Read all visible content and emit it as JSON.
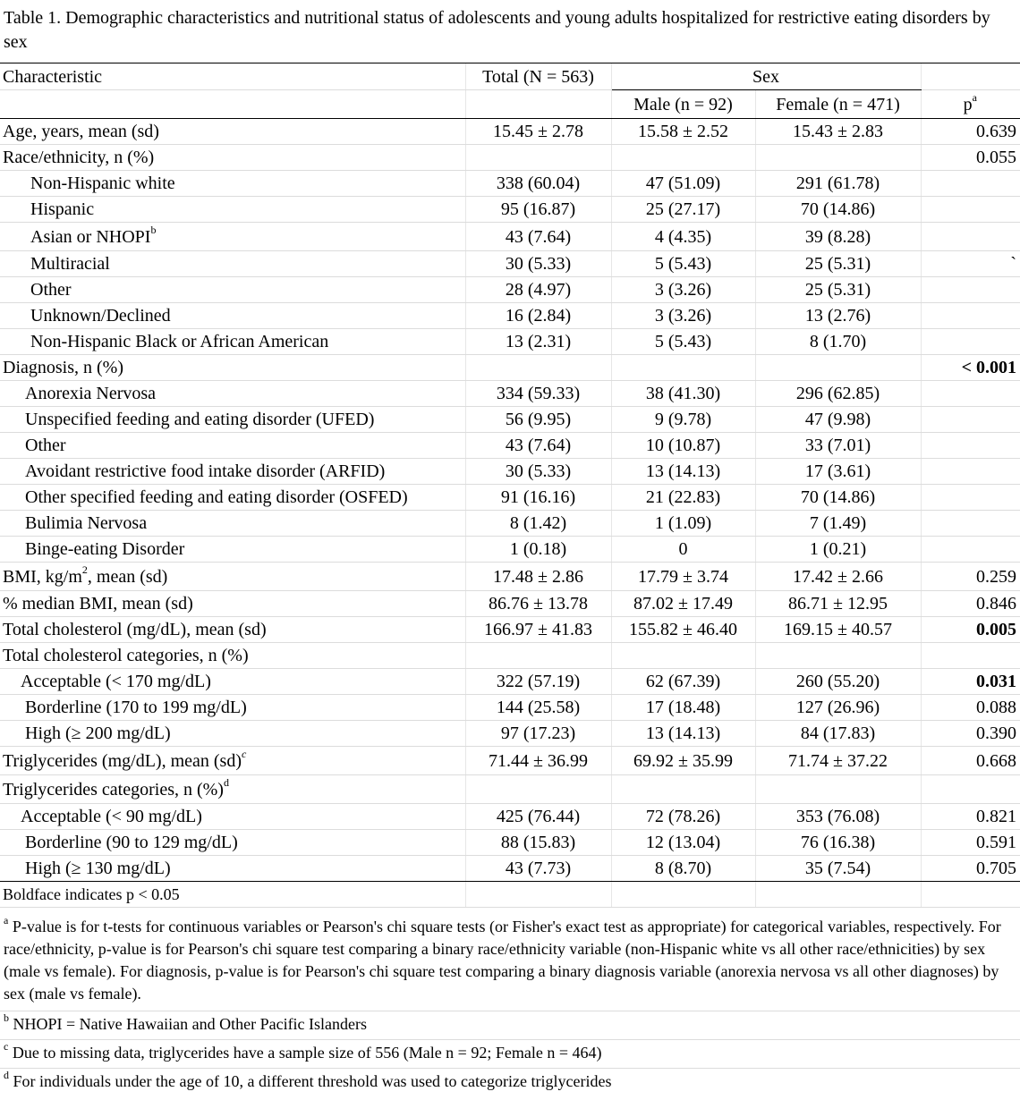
{
  "caption": "Table 1. Demographic characteristics and nutritional status of adolescents and young adults hospitalized for restrictive eating disorders by sex",
  "header": {
    "characteristic": "Characteristic",
    "total": "Total (N = 563)",
    "sex": "Sex",
    "male": "Male (n = 92)",
    "female": "Female (n = 471)",
    "p": "p",
    "p_sup": "a"
  },
  "rows": [
    {
      "label": "Age, years, mean (sd)",
      "total": "15.45 ± 2.78",
      "male": "15.58 ± 2.52",
      "female": "15.43 ± 2.83",
      "p": "0.639"
    },
    {
      "label": "Race/ethnicity, n (%)",
      "total": "",
      "male": "",
      "female": "",
      "p": "0.055"
    },
    {
      "label": "Non-Hispanic white",
      "total": "338 (60.04)",
      "male": "47 (51.09)",
      "female": "291 (61.78)",
      "p": ""
    },
    {
      "label": "Hispanic",
      "total": "95 (16.87)",
      "male": "25 (27.17)",
      "female": "70 (14.86)",
      "p": ""
    },
    {
      "label": "Asian or NHOPI",
      "label_sup": "b",
      "total": "43 (7.64)",
      "male": "4 (4.35)",
      "female": "39 (8.28)",
      "p": ""
    },
    {
      "label": "Multiracial",
      "total": "30 (5.33)",
      "male": "5 (5.43)",
      "female": "25 (5.31)",
      "p": "`"
    },
    {
      "label": "Other",
      "total": "28 (4.97)",
      "male": "3 (3.26)",
      "female": "25 (5.31)",
      "p": ""
    },
    {
      "label": "Unknown/Declined",
      "total": "16 (2.84)",
      "male": "3 (3.26)",
      "female": "13 (2.76)",
      "p": ""
    },
    {
      "label": "Non-Hispanic Black or African American",
      "total": "13 (2.31)",
      "male": "5 (5.43)",
      "female": "8 (1.70)",
      "p": ""
    },
    {
      "label": "Diagnosis, n (%)",
      "total": "",
      "male": "",
      "female": "",
      "p": "< 0.001"
    },
    {
      "label": "Anorexia Nervosa",
      "total": "334 (59.33)",
      "male": "38 (41.30)",
      "female": "296 (62.85)",
      "p": ""
    },
    {
      "label": "Unspecified feeding and eating disorder (UFED)",
      "total": "56 (9.95)",
      "male": "9 (9.78)",
      "female": "47 (9.98)",
      "p": ""
    },
    {
      "label": "Other",
      "total": "43 (7.64)",
      "male": "10 (10.87)",
      "female": "33 (7.01)",
      "p": ""
    },
    {
      "label": "Avoidant restrictive food intake disorder (ARFID)",
      "total": "30 (5.33)",
      "male": "13 (14.13)",
      "female": "17 (3.61)",
      "p": ""
    },
    {
      "label": "Other specified feeding and eating disorder (OSFED)",
      "total": "91 (16.16)",
      "male": "21 (22.83)",
      "female": "70 (14.86)",
      "p": ""
    },
    {
      "label": "Bulimia Nervosa",
      "total": "8 (1.42)",
      "male": "1 (1.09)",
      "female": "7 (1.49)",
      "p": ""
    },
    {
      "label": "Binge-eating Disorder",
      "total": "1 (0.18)",
      "male": "0",
      "female": "1 (0.21)",
      "p": ""
    },
    {
      "label_pre": "BMI, kg/m",
      "label_sup": "2",
      "label_post": ", mean (sd)",
      "total": "17.48 ± 2.86",
      "male": "17.79 ± 3.74",
      "female": "17.42 ± 2.66",
      "p": "0.259"
    },
    {
      "label": "% median BMI, mean (sd)",
      "total": "86.76 ± 13.78",
      "male": "87.02 ± 17.49",
      "female": "86.71 ± 12.95",
      "p": "0.846"
    },
    {
      "label": "Total cholesterol (mg/dL), mean (sd)",
      "total": "166.97 ± 41.83",
      "male": "155.82 ± 46.40",
      "female": "169.15 ± 40.57",
      "p": "0.005"
    },
    {
      "label": "Total cholesterol categories, n (%)",
      "total": "",
      "male": "",
      "female": "",
      "p": ""
    },
    {
      "label": "Acceptable (< 170 mg/dL)",
      "total": "322 (57.19)",
      "male": "62 (67.39)",
      "female": "260 (55.20)",
      "p": "0.031"
    },
    {
      "label": "Borderline (170 to 199 mg/dL)",
      "total": "144 (25.58)",
      "male": "17 (18.48)",
      "female": "127 (26.96)",
      "p": "0.088"
    },
    {
      "label": "High (≥ 200 mg/dL)",
      "total": "97 (17.23)",
      "male": "13 (14.13)",
      "female": "84 (17.83)",
      "p": "0.390"
    },
    {
      "label": "Triglycerides (mg/dL), mean (sd)",
      "label_sup": "c",
      "total": "71.44 ± 36.99",
      "male": "69.92 ± 35.99",
      "female": "71.74 ± 37.22",
      "p": "0.668"
    },
    {
      "label": "Triglycerides categories, n (%)",
      "label_sup": "d",
      "total": "",
      "male": "",
      "female": "",
      "p": ""
    },
    {
      "label": "Acceptable (< 90 mg/dL)",
      "total": "425 (76.44)",
      "male": "72 (78.26)",
      "female": "353 (76.08)",
      "p": "0.821"
    },
    {
      "label": "Borderline (90 to 129 mg/dL)",
      "total": "88 (15.83)",
      "male": "12 (13.04)",
      "female": "76 (16.38)",
      "p": "0.591"
    },
    {
      "label": "High (≥ 130 mg/dL)",
      "total": "43 (7.73)",
      "male": "8 (8.70)",
      "female": "35 (7.54)",
      "p": "0.705"
    }
  ],
  "boldface_note": "Boldface indicates p < 0.05",
  "footnotes": {
    "a_mark": "a",
    "a": "P-value is for t-tests for continuous variables or Pearson's chi square tests (or Fisher's exact test as appropriate) for categorical variables, respectively. For race/ethnicity, p-value is for Pearson's chi square test comparing a binary race/ethnicity variable (non-Hispanic white vs all other race/ethnicities) by sex (male vs female). For diagnosis, p-value is for Pearson's chi square test comparing a binary diagnosis variable (anorexia nervosa vs all other diagnoses) by sex (male vs female).",
    "b_mark": "b",
    "b": "NHOPI = Native Hawaiian and Other Pacific Islanders",
    "c_mark": "c",
    "c": "Due to missing data, triglycerides have a sample size of 556 (Male n = 92; Female n = 464)",
    "d_mark": "d",
    "d": "For individuals under the age of 10, a different threshold was used to categorize triglycerides"
  }
}
